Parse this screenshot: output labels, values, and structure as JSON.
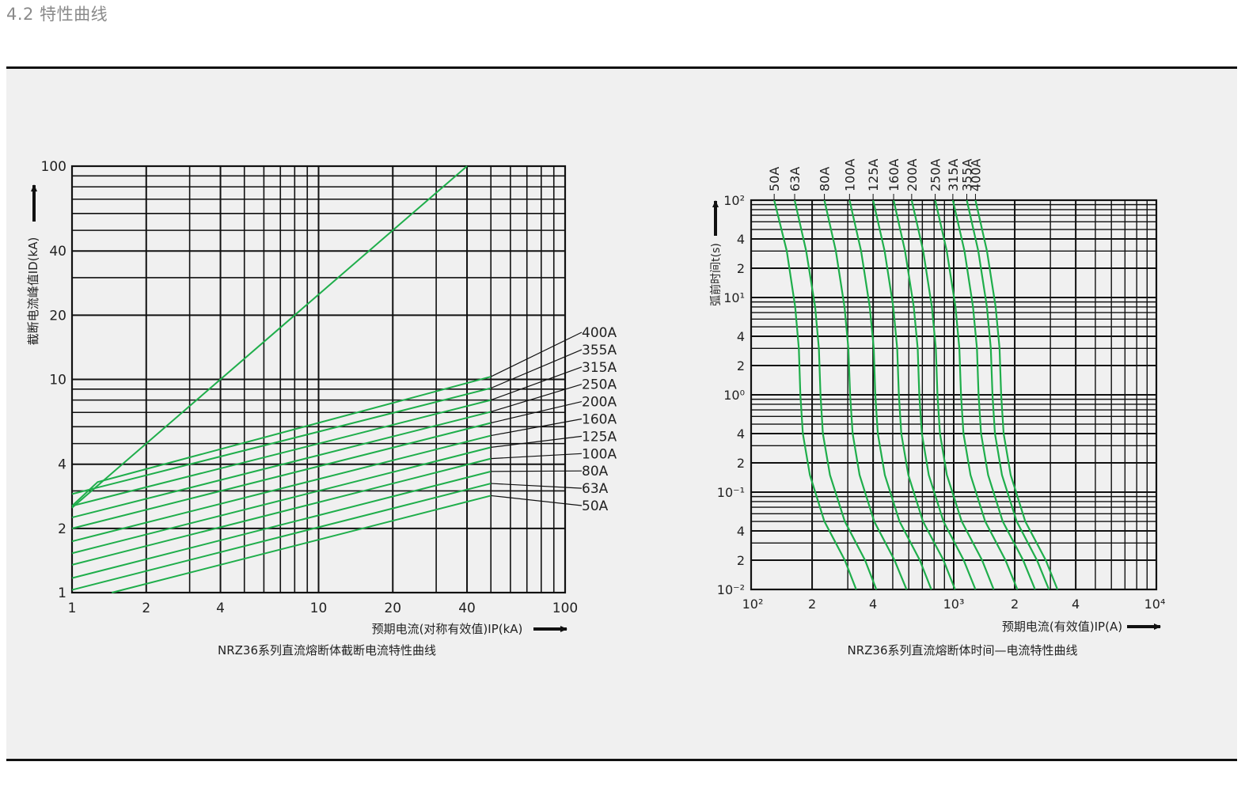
{
  "page": {
    "section_title": "4.2 特性曲线"
  },
  "colors": {
    "curve": "#1fae4b",
    "grid": "#111111",
    "panel_bg": "#f0f0f0",
    "text": "#222222"
  },
  "chart_data": [
    {
      "type": "line",
      "title": "NRZ36系列直流熔断体截断电流特性曲线",
      "xlabel": "预期电流(对称有效值)IP(kA)",
      "ylabel": "截断电流峰值ID(kA)",
      "xscale": "log",
      "yscale": "log",
      "xlim": [
        1,
        100
      ],
      "ylim": [
        1,
        100
      ],
      "xticks": [
        1,
        2,
        4,
        10,
        20,
        40,
        100
      ],
      "xtick_labels": [
        "1",
        "2",
        "4",
        "10",
        "20",
        "40",
        "100"
      ],
      "yticks": [
        1,
        2,
        4,
        10,
        20,
        40,
        100
      ],
      "ytick_labels": [
        "1",
        "2",
        "4",
        "10",
        "20",
        "40",
        "100"
      ],
      "grid": true,
      "reference_line": {
        "x": [
          1,
          40
        ],
        "y": [
          2.5,
          100
        ]
      },
      "series": [
        {
          "name": "400A",
          "x": [
            1,
            1.27,
            50
          ],
          "y": [
            2.55,
            3.3,
            10.3
          ]
        },
        {
          "name": "355A",
          "x": [
            1,
            50
          ],
          "y": [
            2.9,
            9.1
          ]
        },
        {
          "name": "315A",
          "x": [
            1,
            50
          ],
          "y": [
            2.55,
            8.0
          ]
        },
        {
          "name": "250A",
          "x": [
            1,
            50
          ],
          "y": [
            2.25,
            7.05
          ]
        },
        {
          "name": "200A",
          "x": [
            1,
            50
          ],
          "y": [
            2.0,
            6.25
          ]
        },
        {
          "name": "160A",
          "x": [
            1,
            50
          ],
          "y": [
            1.74,
            5.45
          ]
        },
        {
          "name": "125A",
          "x": [
            1,
            50
          ],
          "y": [
            1.53,
            4.8
          ]
        },
        {
          "name": "100A",
          "x": [
            1,
            50
          ],
          "y": [
            1.35,
            4.25
          ]
        },
        {
          "name": "80A",
          "x": [
            1,
            50
          ],
          "y": [
            1.17,
            3.7
          ]
        },
        {
          "name": "63A",
          "x": [
            1,
            50
          ],
          "y": [
            1.03,
            3.25
          ]
        },
        {
          "name": "50A",
          "x": [
            1.45,
            50
          ],
          "y": [
            1.0,
            2.85
          ]
        }
      ],
      "legend_position": "right, leader lines"
    },
    {
      "type": "line",
      "title": "NRZ36系列直流熔断体时间—电流特性曲线",
      "xlabel": "预期电流(有效值)IP(A)",
      "ylabel": "弧前时间t(s)",
      "xscale": "log",
      "yscale": "log",
      "xlim": [
        100,
        10000
      ],
      "ylim": [
        0.01,
        100
      ],
      "xticks": [
        100,
        200,
        400,
        1000,
        2000,
        4000,
        10000
      ],
      "xtick_labels": [
        "10²",
        "2",
        "4",
        "10³",
        "2",
        "4",
        "10⁴"
      ],
      "ytick_labels": [
        "10²",
        "4",
        "2",
        "10¹",
        "4",
        "2",
        "10⁰",
        "4",
        "2",
        "10⁻¹",
        "4",
        "2",
        "10⁻²"
      ],
      "grid": true,
      "series": [
        {
          "name": "50A",
          "x": [
            130,
            150,
            165,
            172,
            175,
            180,
            195,
            230,
            290,
            330
          ],
          "y": [
            100,
            30,
            8,
            3,
            1,
            0.4,
            0.15,
            0.05,
            0.02,
            0.01
          ]
        },
        {
          "name": "63A",
          "x": [
            164,
            187,
            207,
            216,
            220,
            226,
            245,
            290,
            365,
            415
          ],
          "y": [
            100,
            30,
            8,
            3,
            1,
            0.4,
            0.15,
            0.05,
            0.02,
            0.01
          ]
        },
        {
          "name": "80A",
          "x": [
            230,
            262,
            289,
            302,
            308,
            317,
            343,
            405,
            510,
            585
          ],
          "y": [
            100,
            30,
            8,
            3,
            1,
            0.4,
            0.15,
            0.05,
            0.02,
            0.01
          ]
        },
        {
          "name": "100A",
          "x": [
            306,
            349,
            385,
            403,
            410,
            422,
            457,
            540,
            680,
            775
          ],
          "y": [
            100,
            30,
            8,
            3,
            1,
            0.4,
            0.15,
            0.05,
            0.02,
            0.01
          ]
        },
        {
          "name": "125A",
          "x": [
            400,
            456,
            503,
            526,
            536,
            551,
            597,
            705,
            890,
            1015
          ],
          "y": [
            100,
            30,
            8,
            3,
            1,
            0.4,
            0.15,
            0.05,
            0.02,
            0.01
          ]
        },
        {
          "name": "160A",
          "x": [
            505,
            575,
            635,
            664,
            676,
            696,
            753,
            890,
            1120,
            1280
          ],
          "y": [
            100,
            30,
            8,
            3,
            1,
            0.4,
            0.15,
            0.05,
            0.02,
            0.01
          ]
        },
        {
          "name": "200A",
          "x": [
            620,
            707,
            780,
            816,
            831,
            855,
            925,
            1095,
            1380,
            1575
          ],
          "y": [
            100,
            30,
            8,
            3,
            1,
            0.4,
            0.15,
            0.05,
            0.02,
            0.01
          ]
        },
        {
          "name": "250A",
          "x": [
            810,
            924,
            1020,
            1066,
            1086,
            1117,
            1210,
            1430,
            1800,
            2060
          ],
          "y": [
            100,
            30,
            8,
            3,
            1,
            0.4,
            0.15,
            0.05,
            0.02,
            0.01
          ]
        },
        {
          "name": "315A",
          "x": [
            990,
            1130,
            1245,
            1302,
            1326,
            1364,
            1478,
            1745,
            2200,
            2520
          ],
          "y": [
            100,
            30,
            8,
            3,
            1,
            0.4,
            0.15,
            0.05,
            0.02,
            0.01
          ]
        },
        {
          "name": "355A",
          "x": [
            1160,
            1322,
            1458,
            1524,
            1553,
            1597,
            1730,
            2045,
            2575,
            2950
          ],
          "y": [
            100,
            30,
            8,
            3,
            1,
            0.4,
            0.15,
            0.05,
            0.02,
            0.01
          ]
        },
        {
          "name": "400A",
          "x": [
            1280,
            1459,
            1610,
            1683,
            1714,
            1763,
            1910,
            2255,
            2845,
            3250
          ],
          "y": [
            100,
            30,
            8,
            3,
            1,
            0.4,
            0.15,
            0.05,
            0.02,
            0.01
          ]
        }
      ],
      "legend_position": "top, rotated labels"
    }
  ]
}
